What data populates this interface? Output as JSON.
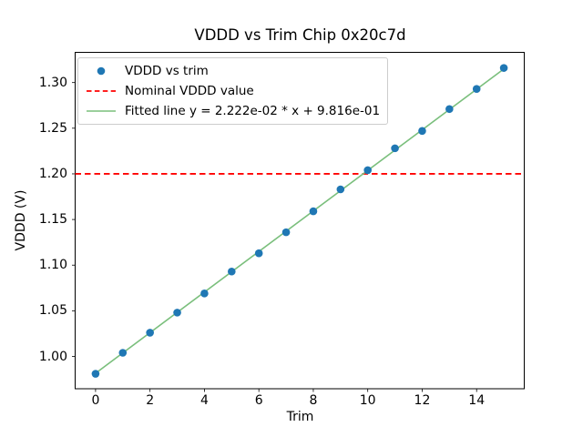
{
  "window": {
    "background": "#ffffff",
    "text_color": "#000000",
    "spine_color": "#000000"
  },
  "chart_data": {
    "type": "scatter",
    "title": "VDDD vs Trim Chip 0x20c7d",
    "xlabel": "Trim",
    "ylabel": "VDDD (V)",
    "xlim": [
      -0.75,
      15.75
    ],
    "ylim": [
      0.9646,
      1.3331
    ],
    "xticks": [
      0,
      2,
      4,
      6,
      8,
      10,
      12,
      14
    ],
    "xtick_labels": [
      "0",
      "2",
      "4",
      "6",
      "8",
      "10",
      "12",
      "14"
    ],
    "yticks": [
      1.0,
      1.05,
      1.1,
      1.15,
      1.2,
      1.25,
      1.3
    ],
    "ytick_labels": [
      "1.00",
      "1.05",
      "1.10",
      "1.15",
      "1.20",
      "1.25",
      "1.30"
    ],
    "grid": false,
    "legend_position": "upper-left",
    "series": [
      {
        "name": "VDDD vs trim",
        "type": "scatter",
        "color": "#1f77b4",
        "x": [
          0,
          1,
          2,
          3,
          4,
          5,
          6,
          7,
          8,
          9,
          10,
          11,
          12,
          13,
          14,
          15
        ],
        "y": [
          0.981,
          1.004,
          1.026,
          1.048,
          1.069,
          1.093,
          1.113,
          1.136,
          1.159,
          1.183,
          1.204,
          1.228,
          1.247,
          1.271,
          1.293,
          1.316
        ]
      },
      {
        "name": "Nominal VDDD value",
        "type": "hline",
        "style": "dashed",
        "color": "#ff0000",
        "y": 1.2
      },
      {
        "name": "Fitted line y = 2.222e-02 * x + 9.816e-01",
        "type": "line",
        "style": "solid",
        "color": "#7abf7c",
        "slope": 0.02222,
        "intercept": 0.9816,
        "x_start": 0,
        "x_end": 15
      }
    ]
  },
  "legend": {
    "entries": [
      {
        "label": "VDDD vs trim",
        "marker": "dot",
        "color": "#1f77b4"
      },
      {
        "label": "Nominal VDDD value",
        "marker": "dashed-line",
        "color": "#ff0000"
      },
      {
        "label": "Fitted line y = 2.222e-02 * x + 9.816e-01",
        "marker": "solid-line",
        "color": "#7abf7c"
      }
    ]
  }
}
